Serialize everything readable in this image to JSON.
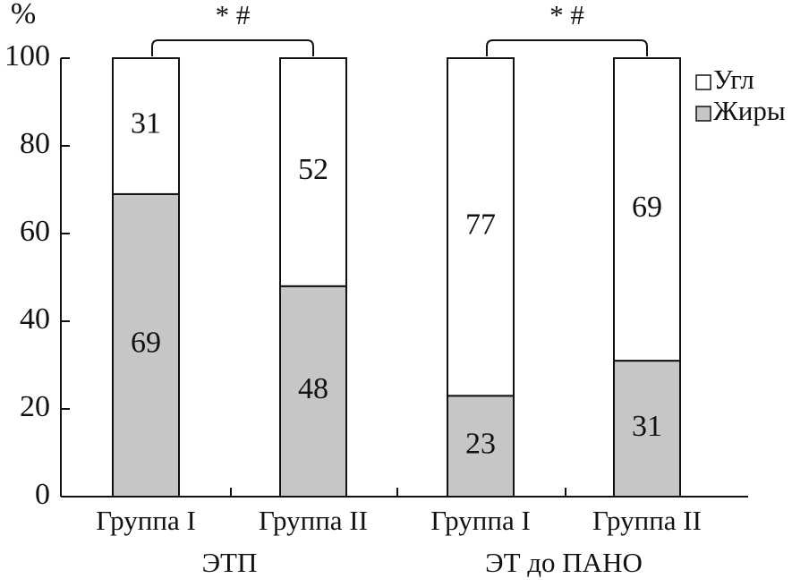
{
  "chart_data": {
    "type": "stacked_bar",
    "y_label": "%",
    "categories": [
      "Группа I",
      "Группа II",
      "Группа I",
      "Группа II"
    ],
    "groups": [
      "ЭТП",
      "ЭТ до ПАНО"
    ],
    "annotations": [
      "* #",
      "* #"
    ],
    "series": [
      {
        "name": "Угл",
        "color": "#ffffff",
        "values": [
          31,
          52,
          77,
          69
        ]
      },
      {
        "name": "Жиры",
        "color": "#c6c6c6",
        "values": [
          69,
          48,
          23,
          31
        ]
      }
    ],
    "ylim": [
      0,
      100
    ],
    "yticks": [
      0,
      20,
      40,
      60,
      80,
      100
    ],
    "legend": "upper right"
  }
}
